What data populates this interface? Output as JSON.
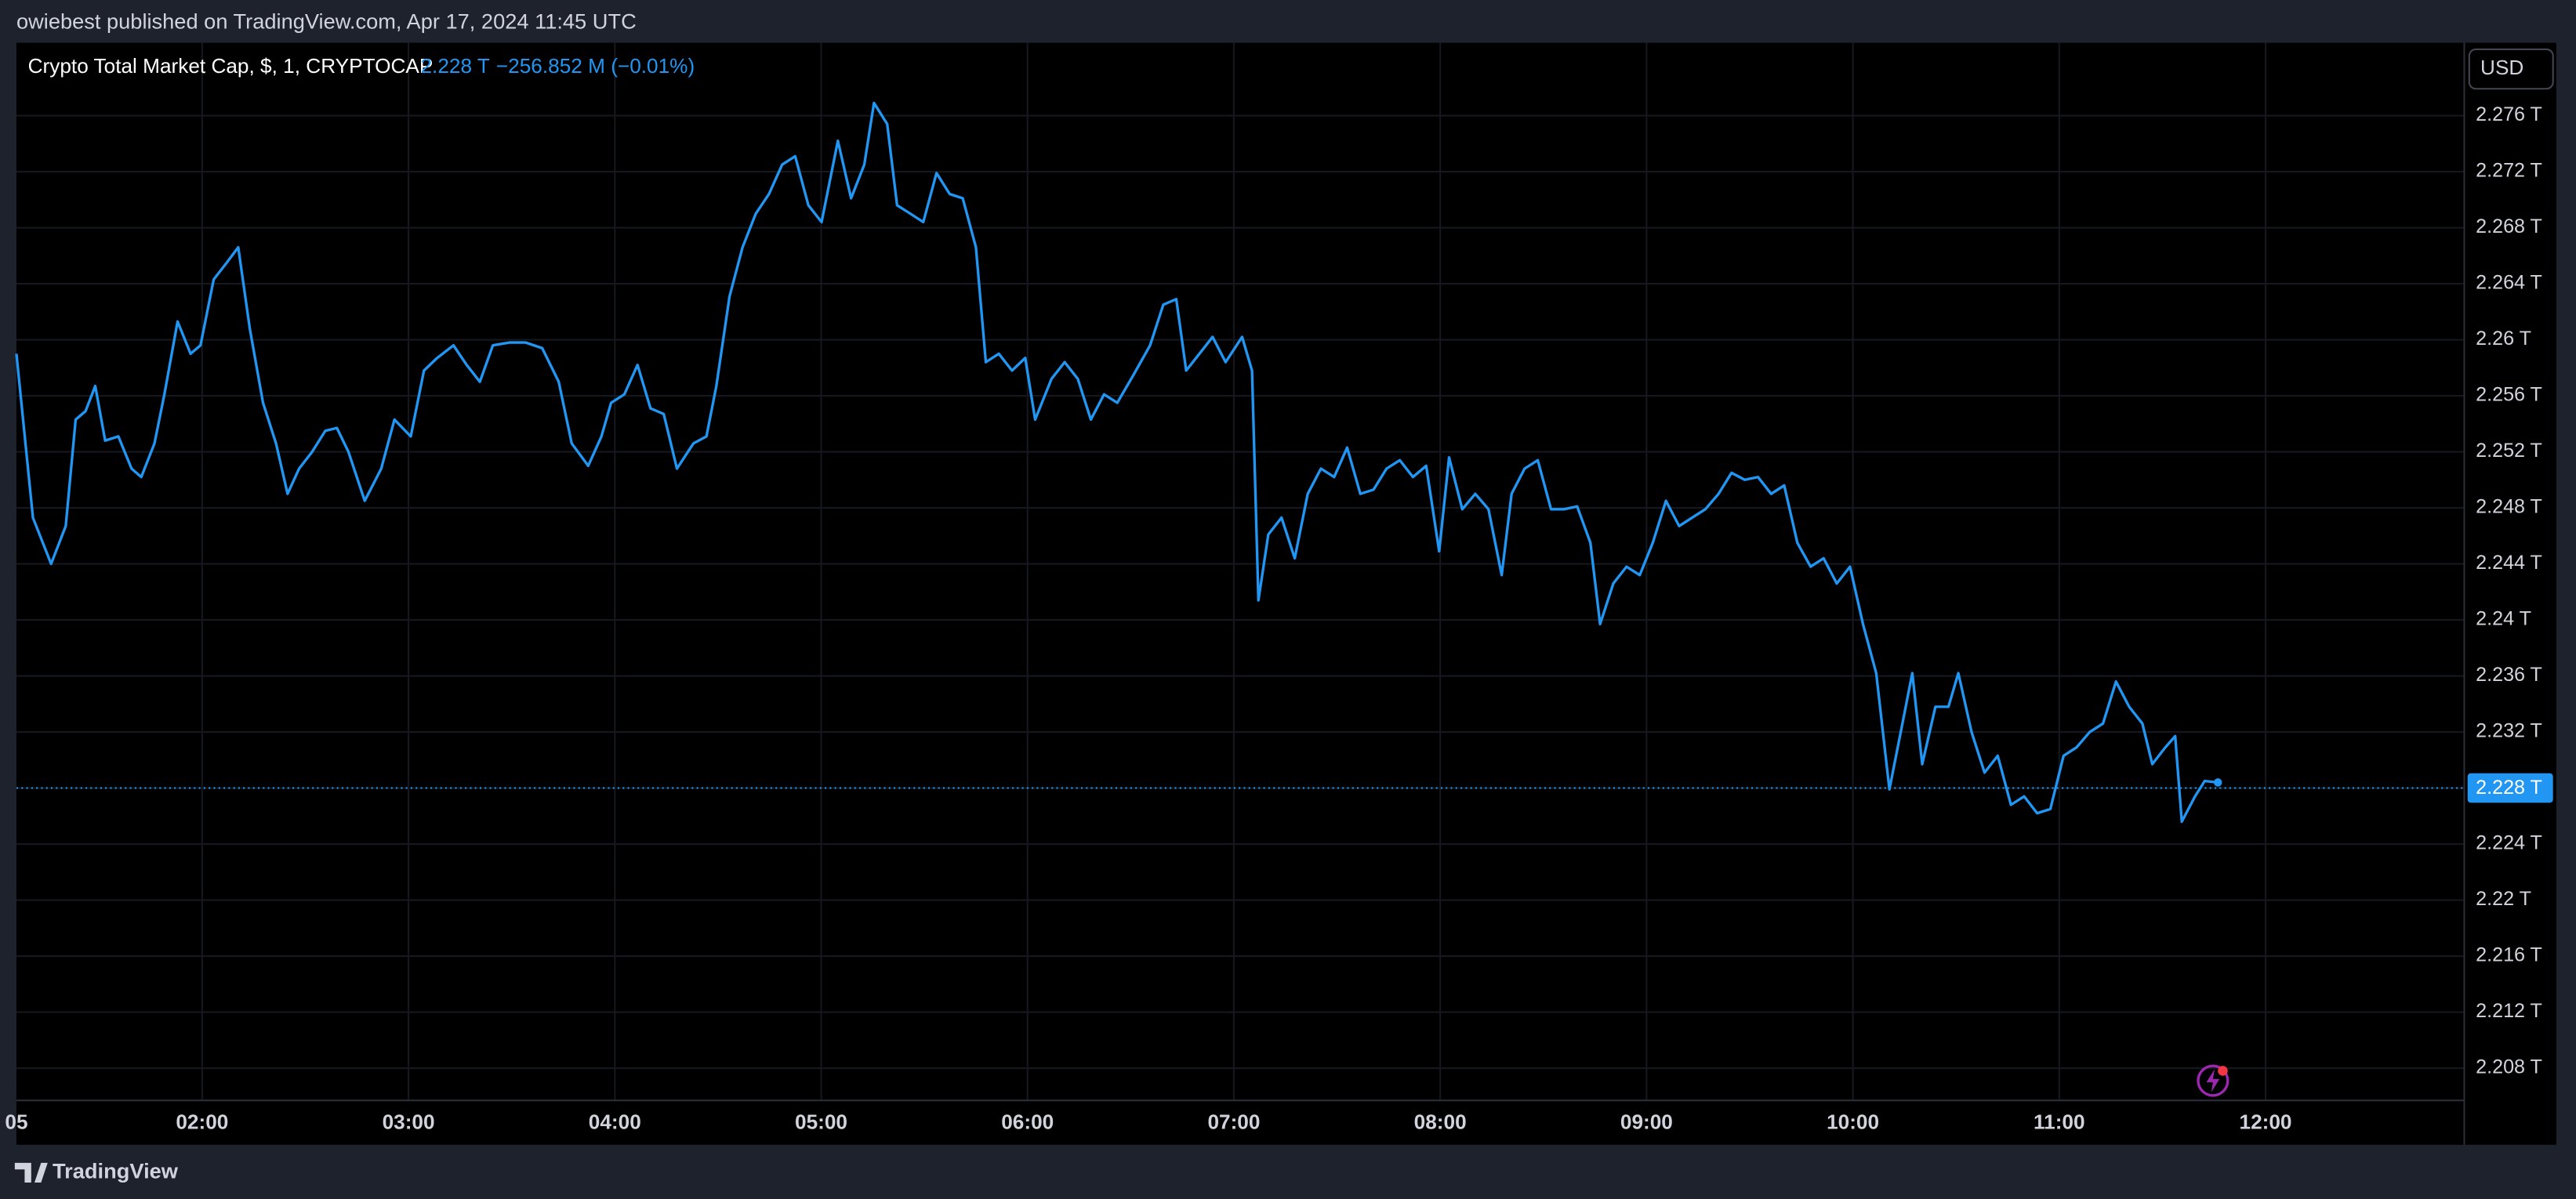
{
  "header": "owiebest published on TradingView.com, Apr 17, 2024 11:45 UTC",
  "brand": "TradingView",
  "currency_button": "USD",
  "chart_data": {
    "type": "line",
    "title": "Crypto Total Market Cap, $, 1, CRYPTOCAP",
    "change_label": "−256.852 M (−0.01%)",
    "current_price": {
      "value": 2.228,
      "label": "2.228 T"
    },
    "grid": true,
    "xlim": [
      1.1,
      12.963
    ],
    "ylim": [
      2.2057,
      2.2812
    ],
    "xticks": [
      {
        "value": 1.1,
        "label": "05"
      },
      {
        "value": 2,
        "label": "02:00"
      },
      {
        "value": 3,
        "label": "03:00"
      },
      {
        "value": 4,
        "label": "04:00"
      },
      {
        "value": 5,
        "label": "05:00"
      },
      {
        "value": 6,
        "label": "06:00"
      },
      {
        "value": 7,
        "label": "07:00"
      },
      {
        "value": 8,
        "label": "08:00"
      },
      {
        "value": 9,
        "label": "09:00"
      },
      {
        "value": 10,
        "label": "10:00"
      },
      {
        "value": 11,
        "label": "11:00"
      },
      {
        "value": 12,
        "label": "12:00"
      }
    ],
    "yticks": [
      {
        "value": 2.208,
        "label": "2.208 T"
      },
      {
        "value": 2.212,
        "label": "2.212 T"
      },
      {
        "value": 2.216,
        "label": "2.216 T"
      },
      {
        "value": 2.22,
        "label": "2.22 T"
      },
      {
        "value": 2.224,
        "label": "2.224 T"
      },
      {
        "value": 2.228,
        "label": "2.228 T"
      },
      {
        "value": 2.232,
        "label": "2.232 T"
      },
      {
        "value": 2.236,
        "label": "2.236 T"
      },
      {
        "value": 2.24,
        "label": "2.24 T"
      },
      {
        "value": 2.244,
        "label": "2.244 T"
      },
      {
        "value": 2.248,
        "label": "2.248 T"
      },
      {
        "value": 2.252,
        "label": "2.252 T"
      },
      {
        "value": 2.256,
        "label": "2.256 T"
      },
      {
        "value": 2.26,
        "label": "2.26 T"
      },
      {
        "value": 2.264,
        "label": "2.264 T"
      },
      {
        "value": 2.268,
        "label": "2.268 T"
      },
      {
        "value": 2.272,
        "label": "2.272 T"
      },
      {
        "value": 2.276,
        "label": "2.276 T"
      }
    ],
    "x": [
      1.1,
      1.18,
      1.268,
      1.339,
      1.387,
      1.435,
      1.482,
      1.53,
      1.594,
      1.658,
      1.705,
      1.769,
      1.817,
      1.881,
      1.944,
      1.992,
      2.056,
      2.119,
      2.175,
      2.231,
      2.295,
      2.358,
      2.414,
      2.47,
      2.533,
      2.597,
      2.653,
      2.709,
      2.788,
      2.868,
      2.932,
      3.011,
      3.075,
      3.139,
      3.218,
      3.282,
      3.346,
      3.409,
      3.489,
      3.568,
      3.648,
      3.728,
      3.791,
      3.871,
      3.935,
      3.982,
      4.046,
      4.11,
      4.173,
      4.237,
      4.301,
      4.381,
      4.444,
      4.492,
      4.556,
      4.619,
      4.683,
      4.747,
      4.811,
      4.874,
      4.938,
      5.002,
      5.081,
      5.145,
      5.209,
      5.256,
      5.32,
      5.368,
      5.432,
      5.495,
      5.559,
      5.623,
      5.686,
      5.75,
      5.798,
      5.861,
      5.925,
      5.989,
      6.037,
      6.116,
      6.18,
      6.244,
      6.307,
      6.371,
      6.435,
      6.514,
      6.594,
      6.658,
      6.721,
      6.769,
      6.833,
      6.897,
      6.96,
      7.04,
      7.088,
      7.119,
      7.167,
      7.231,
      7.295,
      7.358,
      7.422,
      7.486,
      7.549,
      7.613,
      7.677,
      7.74,
      7.804,
      7.868,
      7.932,
      7.995,
      8.043,
      8.107,
      8.17,
      8.234,
      8.298,
      8.346,
      8.409,
      8.473,
      8.537,
      8.6,
      8.664,
      8.728,
      8.775,
      8.839,
      8.903,
      8.967,
      9.03,
      9.094,
      9.158,
      9.221,
      9.285,
      9.349,
      9.412,
      9.476,
      9.54,
      9.604,
      9.667,
      9.731,
      9.795,
      9.858,
      9.922,
      9.986,
      10.049,
      10.113,
      10.177,
      10.24,
      10.288,
      10.336,
      10.4,
      10.463,
      10.511,
      10.575,
      10.638,
      10.702,
      10.766,
      10.83,
      10.893,
      10.957,
      11.021,
      11.084,
      11.148,
      11.212,
      11.275,
      11.339,
      11.403,
      11.451,
      11.514,
      11.562,
      11.594,
      11.658,
      11.705,
      11.769
    ],
    "series": [
      {
        "color": "#2196f3",
        "values": [
          2.259,
          2.2473,
          2.244,
          2.2467,
          2.2543,
          2.2549,
          2.2567,
          2.2528,
          2.2531,
          2.2508,
          2.2502,
          2.2526,
          2.2561,
          2.2613,
          2.259,
          2.2596,
          2.2643,
          2.2655,
          2.2666,
          2.2608,
          2.2555,
          2.2526,
          2.249,
          2.2508,
          2.252,
          2.2535,
          2.2537,
          2.252,
          2.2485,
          2.2508,
          2.2543,
          2.2531,
          2.2578,
          2.2587,
          2.2596,
          2.2582,
          2.257,
          2.2596,
          2.2598,
          2.2598,
          2.2594,
          2.257,
          2.2526,
          2.251,
          2.2531,
          2.2555,
          2.2561,
          2.2582,
          2.2551,
          2.2547,
          2.2508,
          2.2526,
          2.2531,
          2.2567,
          2.2631,
          2.2666,
          2.269,
          2.2704,
          2.2725,
          2.2731,
          2.2696,
          2.2684,
          2.2742,
          2.2701,
          2.2725,
          2.2769,
          2.2754,
          2.2696,
          2.269,
          2.2684,
          2.2719,
          2.2704,
          2.2701,
          2.2666,
          2.2584,
          2.259,
          2.2578,
          2.2587,
          2.2543,
          2.2572,
          2.2584,
          2.2572,
          2.2543,
          2.2561,
          2.2555,
          2.2575,
          2.2596,
          2.2625,
          2.2629,
          2.2578,
          2.259,
          2.2602,
          2.2584,
          2.2602,
          2.2578,
          2.2414,
          2.2461,
          2.2473,
          2.2444,
          2.249,
          2.2508,
          2.2502,
          2.2523,
          2.249,
          2.2493,
          2.2508,
          2.2514,
          2.2502,
          2.251,
          2.2449,
          2.2516,
          2.2479,
          2.249,
          2.2479,
          2.2432,
          2.249,
          2.2508,
          2.2514,
          2.2479,
          2.2479,
          2.2481,
          2.2455,
          2.2397,
          2.2426,
          2.2438,
          2.2432,
          2.2455,
          2.2485,
          2.2467,
          2.2473,
          2.2479,
          2.249,
          2.2505,
          2.25,
          2.2502,
          2.249,
          2.2496,
          2.2455,
          2.2438,
          2.2444,
          2.2426,
          2.2438,
          2.2397,
          2.2362,
          2.2279,
          2.2326,
          2.2362,
          2.2297,
          2.2338,
          2.2338,
          2.2362,
          2.232,
          2.2291,
          2.2303,
          2.2268,
          2.2274,
          2.2262,
          2.2265,
          2.2303,
          2.2309,
          2.232,
          2.2326,
          2.2356,
          2.2338,
          2.2326,
          2.2297,
          2.2309,
          2.2317,
          2.2256,
          2.2274,
          2.2285,
          2.2284
        ]
      }
    ]
  }
}
